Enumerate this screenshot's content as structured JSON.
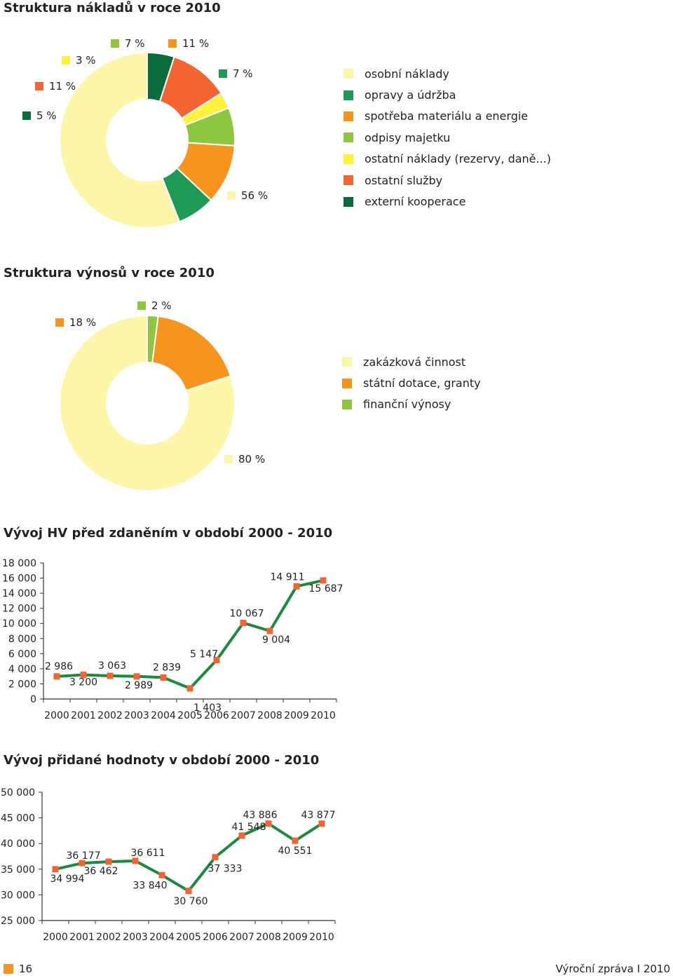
{
  "chart_data": [
    {
      "type": "pie",
      "title": "Struktura nákladů v roce 2010",
      "labels": [
        "externí kooperace",
        "ostatní služby",
        "ostatní náklady (rezervy, daně...)",
        "odpisy majetku",
        "spotřeba materiálu a energie",
        "opravy a údržba",
        "osobní náklady"
      ],
      "values": [
        5,
        11,
        3,
        7,
        11,
        7,
        56
      ],
      "value_labels": [
        "5 %",
        "11 %",
        "3 %",
        "7 %",
        "11 %",
        "7 %",
        "56 %"
      ],
      "colors": [
        "#0a6b3b",
        "#f26532",
        "#fff23a",
        "#8dc63f",
        "#f7941d",
        "#1f9a56",
        "#fdf6a9"
      ],
      "legend_position": "right"
    },
    {
      "type": "pie",
      "title": "Struktura výnosů v roce 2010",
      "labels": [
        "finanční výnosy",
        "státní dotace, granty",
        "zakázková činnost"
      ],
      "values": [
        2,
        18,
        80
      ],
      "value_labels": [
        "2 %",
        "18 %",
        "80 %"
      ],
      "colors": [
        "#8dc63f",
        "#f7941d",
        "#fdf6a9"
      ],
      "legend_position": "right"
    },
    {
      "type": "line",
      "title": "Vývoj HV před zdaněním v období 2000 - 2010",
      "x": [
        "2000",
        "2001",
        "2002",
        "2003",
        "2004",
        "2005",
        "2006",
        "2007",
        "2008",
        "2009",
        "2010"
      ],
      "values": [
        2986,
        3200,
        3063,
        2989,
        2839,
        1403,
        5147,
        10067,
        9004,
        14911,
        15687
      ],
      "value_labels": [
        "2 986",
        "3 200",
        "3 063",
        "2 989",
        "2 839",
        "1 403",
        "5 147",
        "10 067",
        "9 004",
        "14 911",
        "15 687"
      ],
      "yticks": [
        "0",
        "2 000",
        "4 000",
        "6 000",
        "8 000",
        "10 000",
        "12 000",
        "14 000",
        "16 000",
        "18 000"
      ],
      "ylim": [
        0,
        18000
      ],
      "line_color": "#1b8a3c",
      "marker_color": "#f26532"
    },
    {
      "type": "line",
      "title": "Vývoj přidané hodnoty v období 2000 - 2010",
      "x": [
        "2000",
        "2001",
        "2002",
        "2003",
        "2004",
        "2005",
        "2006",
        "2007",
        "2008",
        "2009",
        "2010"
      ],
      "values": [
        34994,
        36177,
        36462,
        36611,
        33840,
        30760,
        37333,
        41548,
        43886,
        40551,
        43877
      ],
      "value_labels": [
        "34 994",
        "36 177",
        "36 462",
        "36 611",
        "33 840",
        "30 760",
        "37 333",
        "41 548",
        "43 886",
        "40 551",
        "43 877"
      ],
      "yticks": [
        "25 000",
        "30 000",
        "35 000",
        "40 000",
        "45 000",
        "50 000"
      ],
      "ylim": [
        25000,
        50000
      ],
      "line_color": "#1b8a3c",
      "marker_color": "#f26532"
    }
  ],
  "footer": {
    "page_number": "16",
    "publication": "Výroční zpráva I 2010"
  }
}
